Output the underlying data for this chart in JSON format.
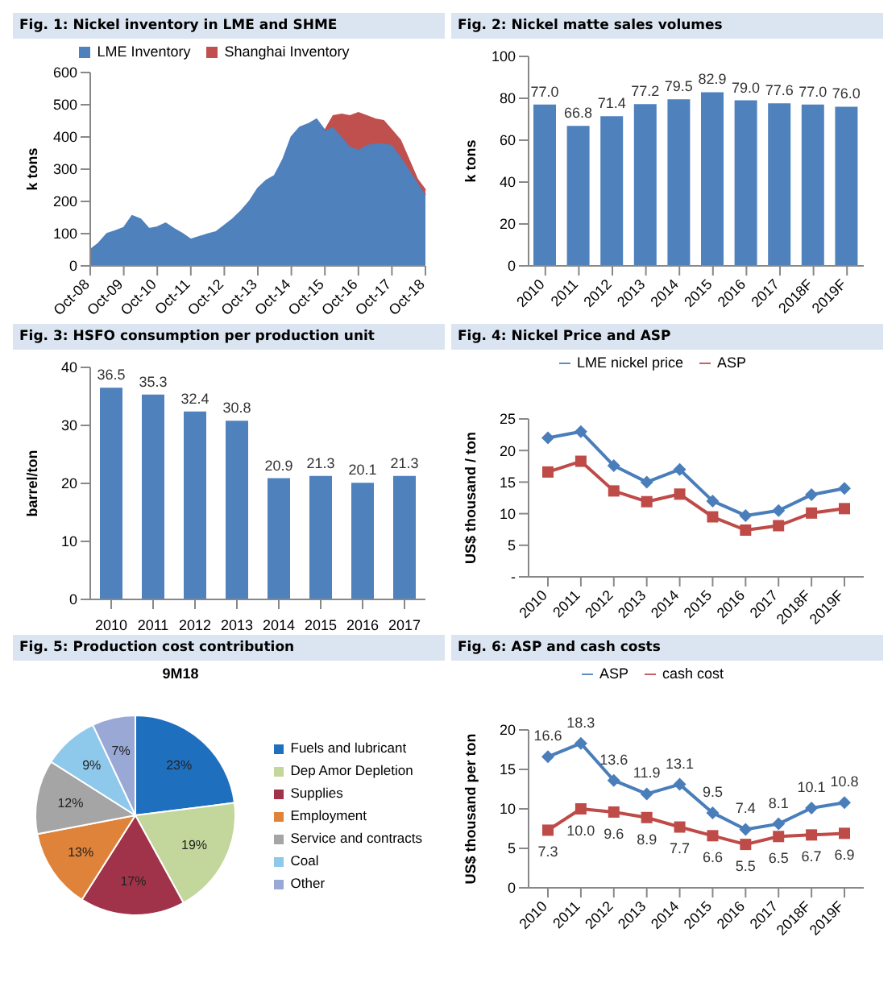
{
  "chart_data": [
    {
      "type": "area",
      "title": "Fig. 1: Nickel inventory in LME and SHME",
      "ylabel": "k tons",
      "stacked": true,
      "legend": "top",
      "ylim": [
        0,
        600
      ],
      "yticks": [
        0,
        100,
        200,
        300,
        400,
        500,
        600
      ],
      "categories": [
        "Oct-08",
        null,
        null,
        null,
        "Oct-09",
        null,
        null,
        null,
        "Oct-10",
        null,
        null,
        null,
        "Oct-11",
        null,
        null,
        null,
        "Oct-12",
        null,
        null,
        null,
        "Oct-13",
        null,
        null,
        null,
        "Oct-14",
        null,
        null,
        null,
        "Oct-15",
        null,
        null,
        null,
        "Oct-16",
        null,
        null,
        null,
        "Oct-17",
        null,
        null,
        null,
        "Oct-18"
      ],
      "series": [
        {
          "name": "LME Inventory",
          "color": "#4f81bd",
          "values": [
            50,
            70,
            100,
            108,
            118,
            155,
            145,
            115,
            120,
            132,
            115,
            100,
            82,
            90,
            98,
            105,
            125,
            145,
            170,
            200,
            240,
            265,
            280,
            330,
            400,
            430,
            440,
            455,
            420,
            430,
            400,
            370,
            360,
            375,
            380,
            380,
            375,
            340,
            300,
            260,
            220
          ]
        },
        {
          "name": "Shanghai Inventory",
          "color": "#c0504d",
          "values": [
            null,
            null,
            null,
            null,
            null,
            null,
            null,
            null,
            null,
            null,
            null,
            null,
            null,
            null,
            null,
            null,
            null,
            null,
            null,
            null,
            null,
            null,
            null,
            null,
            null,
            null,
            null,
            null,
            0,
            35,
            70,
            95,
            115,
            90,
            75,
            70,
            45,
            50,
            30,
            10,
            15
          ]
        }
      ]
    },
    {
      "type": "bar",
      "title": "Fig. 2:  Nickel matte sales volumes",
      "ylabel": "k tons",
      "ylim": [
        0,
        100
      ],
      "yticks": [
        0,
        20,
        40,
        60,
        80,
        100
      ],
      "categories": [
        "2010",
        "2011",
        "2012",
        "2013",
        "2014",
        "2015",
        "2016",
        "2017",
        "2018F",
        "2019F"
      ],
      "series": [
        {
          "color": "#4f81bd",
          "values": [
            77.0,
            66.8,
            71.4,
            77.2,
            79.5,
            82.9,
            79.0,
            77.6,
            77.0,
            76.0
          ],
          "value_labels": [
            "77.0",
            "66.8",
            "71.4",
            "77.2",
            "79.5",
            "82.9",
            "79.0",
            "77.6",
            "77.0",
            "76.0"
          ]
        }
      ]
    },
    {
      "type": "bar",
      "title": "Fig. 3: HSFO consumption per production unit",
      "ylabel": "barrel/ton",
      "ylim": [
        0,
        40
      ],
      "yticks": [
        0,
        10,
        20,
        30,
        40
      ],
      "data_labels": true,
      "categories": [
        "2010",
        "2011",
        "2012",
        "2013",
        "2014",
        "2015",
        "2016",
        "2017"
      ],
      "series": [
        {
          "color": "#4f81bd",
          "values": [
            36.5,
            35.3,
            32.4,
            30.8,
            20.9,
            21.3,
            20.1,
            21.3
          ]
        }
      ]
    },
    {
      "type": "line",
      "title": "Fig. 4: Nickel Price and ASP",
      "ylabel": "US$ thousand / ton",
      "legend": "top",
      "ylim": [
        0,
        25
      ],
      "yticks": [
        {
          "value": 0,
          "label": "-"
        },
        5,
        10,
        15,
        20,
        25
      ],
      "categories": [
        "2010",
        "2011",
        "2012",
        "2013",
        "2014",
        "2015",
        "2016",
        "2017",
        "2018F",
        "2019F"
      ],
      "series": [
        {
          "name": "LME nickel price",
          "color": "#4a7ebb",
          "marker": "diamond",
          "values": [
            22,
            23,
            17.6,
            15,
            17,
            12,
            9.7,
            10.5,
            13,
            14
          ]
        },
        {
          "name": "ASP",
          "color": "#be4b48",
          "marker": "square",
          "values": [
            16.6,
            18.3,
            13.6,
            11.9,
            13.1,
            9.5,
            7.4,
            8.1,
            10.1,
            10.8
          ]
        }
      ]
    },
    {
      "type": "pie",
      "title": "Fig. 5: Production cost contribution",
      "subtitle": "9M18",
      "legend": "right",
      "categories": [
        "Fuels and lubricant",
        "Dep Amor Depletion",
        "Supplies",
        "Employment",
        "Service and contracts",
        "Coal",
        "Other"
      ],
      "values": [
        23,
        19,
        17,
        13,
        12,
        9,
        7
      ],
      "value_labels": [
        "23%",
        "19%",
        "17%",
        "13%",
        "12%",
        "9%",
        "7%"
      ],
      "colors": [
        "#1f6fbf",
        "#c3d69b",
        "#a0334a",
        "#e0833a",
        "#a5a5a5",
        "#8ec8ea",
        "#9aa8d6"
      ]
    },
    {
      "type": "line",
      "title": "Fig. 6: ASP and cash costs",
      "ylabel": "US$ thousand per ton",
      "legend": "top",
      "ylim": [
        0,
        20
      ],
      "yticks": [
        0,
        5,
        10,
        15,
        20
      ],
      "categories": [
        "2010",
        "2011",
        "2012",
        "2013",
        "2014",
        "2015",
        "2016",
        "2017",
        "2018F",
        "2019F"
      ],
      "series": [
        {
          "name": "ASP",
          "color": "#4a7ebb",
          "marker": "diamond",
          "values": [
            16.6,
            18.3,
            13.6,
            11.9,
            13.1,
            9.5,
            7.4,
            8.1,
            10.1,
            10.8
          ],
          "value_labels": [
            "16.6",
            "18.3",
            "13.6",
            "11.9",
            "13.1",
            "9.5",
            "7.4",
            "8.1",
            "10.1",
            "10.8"
          ]
        },
        {
          "name": "cash cost",
          "color": "#be4b48",
          "marker": "square",
          "values": [
            7.3,
            10.0,
            9.6,
            8.9,
            7.7,
            6.6,
            5.5,
            6.5,
            6.7,
            6.9
          ],
          "value_labels": [
            "7.3",
            "10.0",
            "9.6",
            "8.9",
            "7.7",
            "6.6",
            "5.5",
            "6.5",
            "6.7",
            "6.9"
          ]
        }
      ]
    }
  ]
}
